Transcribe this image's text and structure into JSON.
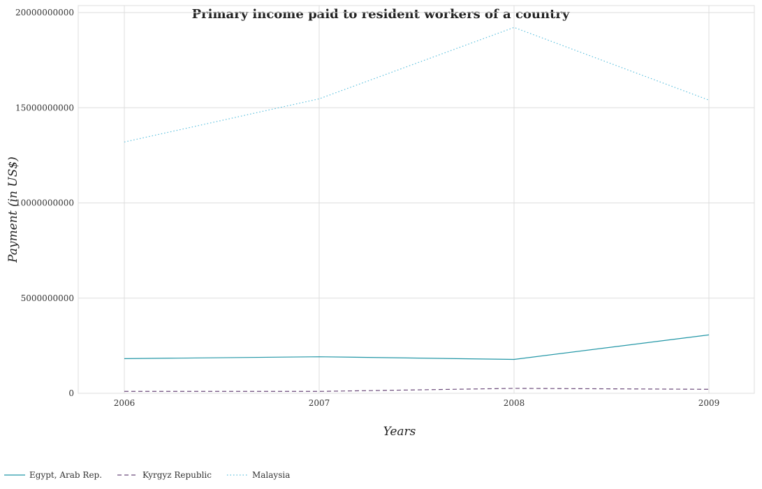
{
  "chart_data": {
    "type": "line",
    "title": "Primary income paid to resident workers of a country",
    "xlabel": "Years",
    "ylabel": "Payment (in US$)",
    "categories": [
      "2006",
      "2007",
      "2008",
      "2009"
    ],
    "ylim": [
      0,
      20000000000
    ],
    "yticks": [
      0,
      5000000000,
      10000000000,
      15000000000,
      20000000000
    ],
    "ytick_labels": [
      "0",
      "5000000000",
      "10000000000",
      "15000000000",
      "20000000000"
    ],
    "grid": true,
    "legend_position": "bottom-left",
    "series": [
      {
        "name": "Egypt, Arab Rep.",
        "color": "#2196a6",
        "dash": "solid",
        "values": [
          1820000000,
          1920000000,
          1780000000,
          3070000000
        ]
      },
      {
        "name": "Kyrgyz Republic",
        "color": "#6b4a7a",
        "dash": "dash",
        "values": [
          100000000,
          100000000,
          260000000,
          210000000
        ]
      },
      {
        "name": "Malaysia",
        "color": "#5bc0de",
        "dash": "dot",
        "values": [
          13200000000,
          15470000000,
          19220000000,
          15400000000
        ]
      }
    ]
  }
}
